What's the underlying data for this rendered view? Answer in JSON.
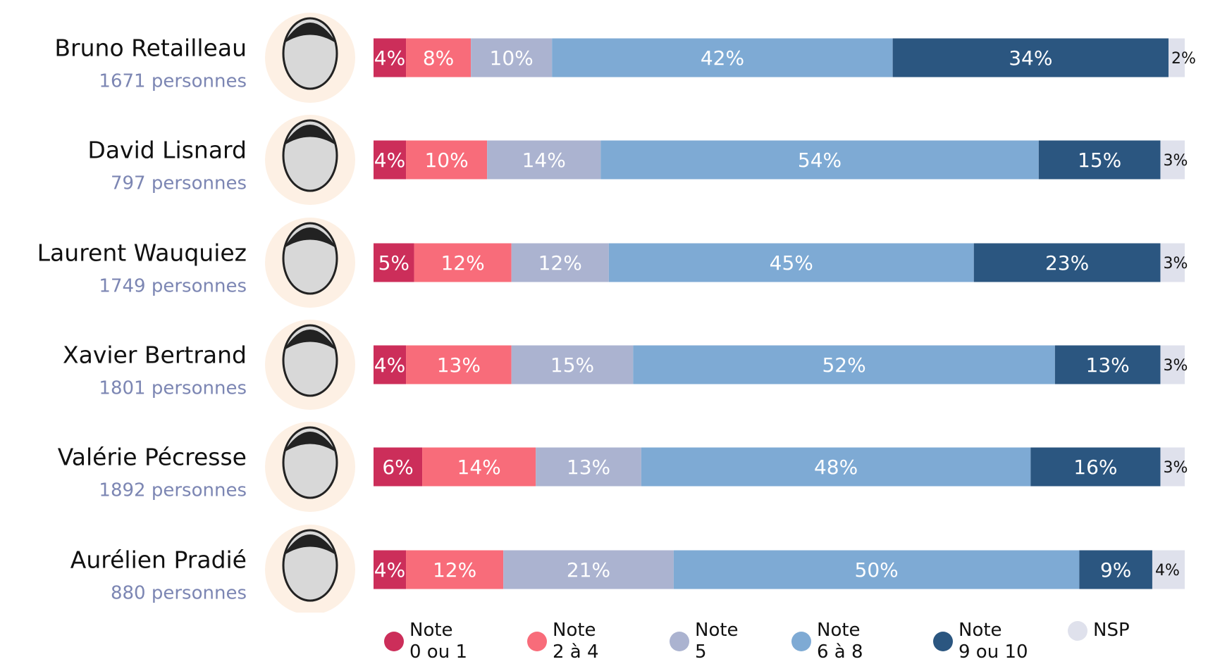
{
  "chart_data": {
    "type": "stacked-bar-horizontal",
    "categories": [
      "Bruno Retailleau",
      "David Lisnard",
      "Laurent Wauquiez",
      "Xavier Bertrand",
      "Valérie Pécresse",
      "Aurélien Pradié"
    ],
    "category_notes": [
      "1671 personnes",
      "797 personnes",
      "1749 personnes",
      "1801 personnes",
      "1892 personnes",
      "880 personnes"
    ],
    "xlim": [
      0,
      100
    ],
    "series": [
      {
        "name": "Note\n0 ou 1",
        "color": "#cc2e5a",
        "values": [
          4,
          4,
          5,
          4,
          6,
          4
        ],
        "value_labels": [
          "4%",
          "4%",
          "5%",
          "4%",
          "6%",
          "4%"
        ]
      },
      {
        "name": "Note\n2 à 4",
        "color": "#f86c7a",
        "values": [
          8,
          10,
          12,
          13,
          14,
          12
        ],
        "value_labels": [
          "8%",
          "10%",
          "12%",
          "13%",
          "14%",
          "12%"
        ]
      },
      {
        "name": "Note\n5",
        "color": "#abb3d0",
        "values": [
          10,
          14,
          12,
          15,
          13,
          21
        ],
        "value_labels": [
          "10%",
          "14%",
          "12%",
          "15%",
          "13%",
          "21%"
        ]
      },
      {
        "name": "Note\n6 à 8",
        "color": "#7eaad4",
        "values": [
          42,
          54,
          45,
          52,
          48,
          50
        ],
        "value_labels": [
          "42%",
          "54%",
          "45%",
          "52%",
          "48%",
          "50%"
        ]
      },
      {
        "name": "Note\n9 ou 10",
        "color": "#2b5680",
        "values": [
          34,
          15,
          23,
          13,
          16,
          9
        ],
        "value_labels": [
          "34%",
          "15%",
          "23%",
          "13%",
          "16%",
          "9%"
        ]
      },
      {
        "name": "NSP",
        "color": "#dfe1ec",
        "values": [
          2,
          3,
          3,
          3,
          3,
          4
        ],
        "value_labels": [
          "2%",
          "3%",
          "3%",
          "3%",
          "3%",
          "4%"
        ]
      }
    ]
  }
}
